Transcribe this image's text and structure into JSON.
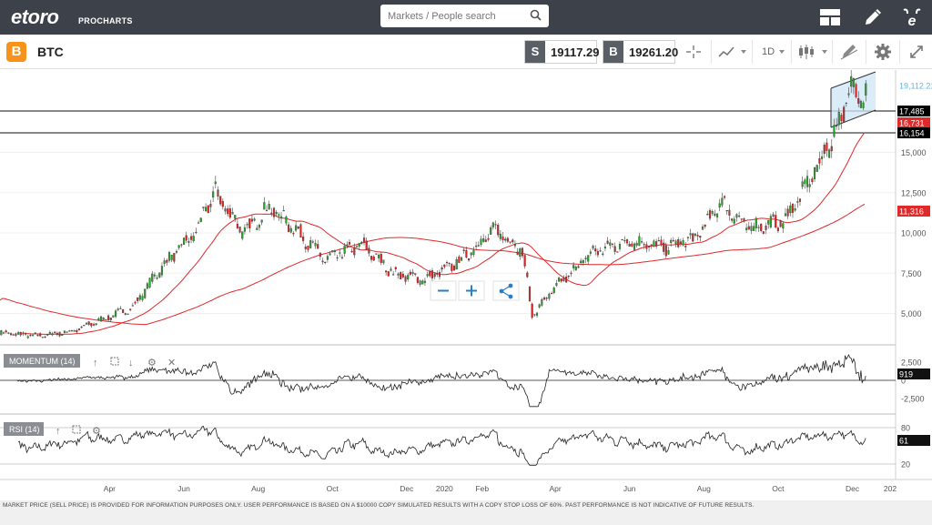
{
  "header": {
    "logo": "etoro",
    "logo_sub": "PROCHARTS",
    "search_placeholder": "Markets / People search"
  },
  "toolbar": {
    "icon_glyph": "B",
    "symbol": "BTC",
    "sell_tag": "S",
    "sell_price": "19117.29",
    "buy_tag": "B",
    "buy_price": "19261.20",
    "timeframe": "1D"
  },
  "chart_data": [
    {
      "type": "candlestick",
      "title": "BTC",
      "y_ticks": [
        "2,500",
        "5,000",
        "7,500",
        "10,000",
        "12,500",
        "15,000"
      ],
      "ylim": [
        2500,
        20000
      ],
      "x_ticks": [
        "Apr",
        "Jun",
        "Aug",
        "Oct",
        "Dec",
        "2020",
        "Feb",
        "Apr",
        "Jun",
        "Aug",
        "Oct",
        "Dec",
        "202"
      ],
      "price_anchors": {
        "x": [
          "2019-01-01",
          "2019-02-01",
          "2019-03-01",
          "2019-04-01",
          "2019-04-20",
          "2019-05-15",
          "2019-06-10",
          "2019-06-26",
          "2019-07-20",
          "2019-08-10",
          "2019-09-01",
          "2019-09-25",
          "2019-10-25",
          "2019-11-20",
          "2019-12-15",
          "2020-01-10",
          "2020-02-12",
          "2020-03-05",
          "2020-03-13",
          "2020-04-01",
          "2020-05-01",
          "2020-06-01",
          "2020-07-01",
          "2020-07-25",
          "2020-08-15",
          "2020-09-05",
          "2020-10-05",
          "2020-10-25",
          "2020-11-15",
          "2020-11-30",
          "2020-12-08",
          "2020-12-12"
        ],
        "y": [
          3800,
          3600,
          3900,
          4800,
          5400,
          8000,
          10000,
          12600,
          10000,
          11600,
          10200,
          8300,
          9300,
          7500,
          7100,
          8100,
          10200,
          8900,
          4900,
          6600,
          8800,
          9500,
          9100,
          9700,
          11900,
          10300,
          10700,
          13000,
          16000,
          19000,
          18600,
          19100
        ]
      },
      "annotations": [
        {
          "text": "19,112.21",
          "role": "current-price",
          "color": "#5cb8e6"
        },
        {
          "text": "17,485",
          "role": "horizontal-line",
          "color": "#000000"
        },
        {
          "text": "16,731",
          "role": "ma-label",
          "color": "#e0292b"
        },
        {
          "text": "16,154",
          "role": "horizontal-line",
          "color": "#000000"
        },
        {
          "text": "11,316",
          "role": "ma-label",
          "color": "#e0292b"
        }
      ],
      "ma_color": "#e0292b",
      "up_color": "#2ca02c",
      "down_color": "#d62728"
    },
    {
      "type": "line",
      "legend": "MOMENTUM (14)",
      "y_ticks": [
        "2,500",
        "0",
        "-2,500"
      ],
      "last_value": "919"
    },
    {
      "type": "line",
      "legend": "RSI (14)",
      "y_ticks": [
        "80",
        "20"
      ],
      "last_value": "61"
    }
  ],
  "footer": {
    "disclaimer": "MARKET PRICE (SELL PRICE) IS PROVIDED FOR INFORMATION PURPOSES ONLY. USER PERFORMANCE IS BASED ON A $10000 COPY SIMULATED RESULTS WITH A COPY STOP LOSS OF 60%. PAST PERFORMANCE IS NOT INDICATIVE OF FUTURE RESULTS."
  }
}
